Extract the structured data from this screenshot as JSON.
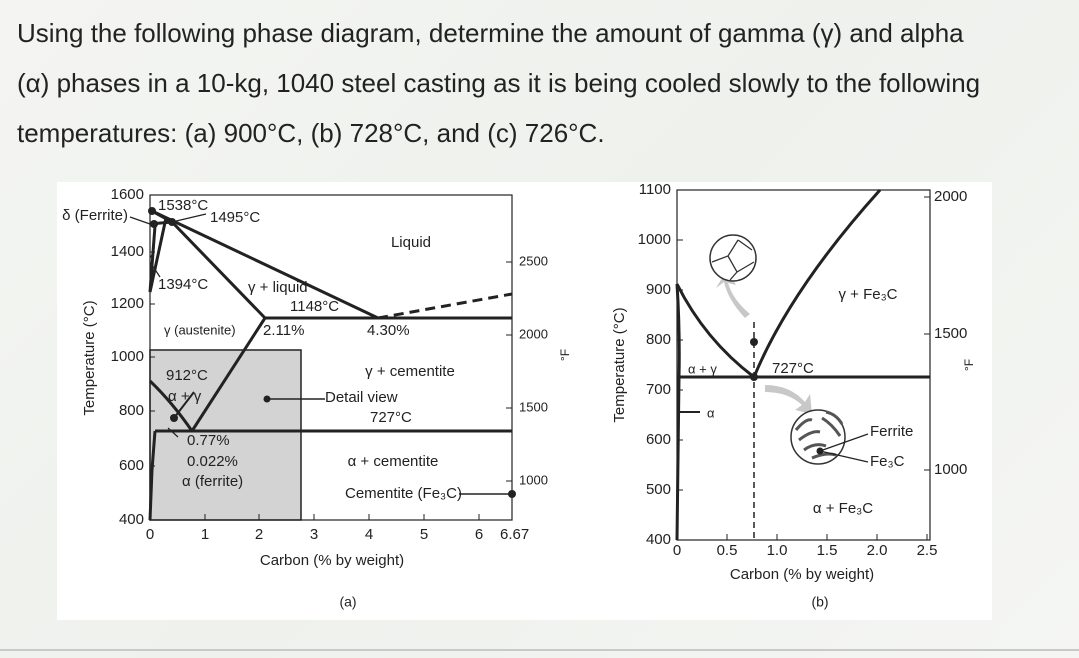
{
  "question_lines": [
    "Using the following phase diagram, determine the amount of gamma (γ) and alpha",
    "(α) phases in a 10-kg, 1040 steel casting as it is being cooled slowly to the following",
    "temperatures: (a) 900°C, (b) 728°C, and (c) 726°C."
  ],
  "figure_a": {
    "y_axis_label": "Temperature (°C)",
    "y_ticks": [
      "1600",
      "1400",
      "1200",
      "1000",
      "800",
      "600",
      "400"
    ],
    "x_ticks": [
      "0",
      "1",
      "2",
      "3",
      "4",
      "5",
      "6",
      "6.67"
    ],
    "x_axis_label": "Carbon (% by weight)",
    "f_axis_label": "°F",
    "f_ticks": [
      "2500",
      "2000",
      "1500",
      "1000"
    ],
    "caption": "(a)",
    "labels": [
      "δ (Ferrite)",
      "1538°C",
      "1495°C",
      "Liquid",
      "1394°C",
      "γ + liquid",
      "1148°C",
      "γ (austenite)",
      "2.11%",
      "4.30%",
      "912°C",
      "α + γ",
      "γ + cementite",
      "Detail view",
      "727°C",
      "0.77%",
      "0.022%",
      "α (ferrite)",
      "α + cementite",
      "Cementite (Fe₃C)"
    ]
  },
  "figure_b": {
    "y_axis_label": "Temperature (°C)",
    "y_ticks": [
      "1100",
      "1000",
      "900",
      "800",
      "700",
      "600",
      "500",
      "400"
    ],
    "x_ticks": [
      "0",
      "0.5",
      "1.0",
      "1.5",
      "2.0",
      "2.5"
    ],
    "x_axis_label": "Carbon (% by weight)",
    "f_axis_label": "°F",
    "f_ticks": [
      "2000",
      "1500",
      "1000"
    ],
    "caption": "(b)",
    "labels": [
      "γ + Fe₃C",
      "α + γ",
      "727°C",
      "α",
      "Ferrite",
      "Fe₃C",
      "α + Fe₃C"
    ]
  }
}
